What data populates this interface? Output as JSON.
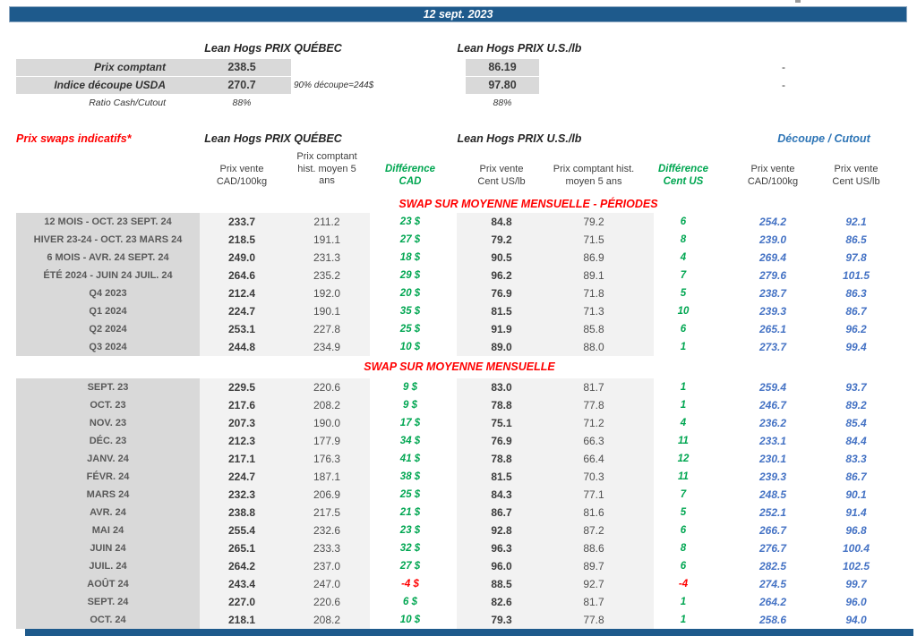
{
  "colors": {
    "navy": "#1E5A8C",
    "red": "#FF0000",
    "green": "#00A651",
    "blue": "#4472C4",
    "blue_title": "#2E75B6",
    "label_bg": "#D9D9D9",
    "band_bg": "#F2F2F2"
  },
  "page": {
    "date_bar": "12 sept. 2023"
  },
  "spot": {
    "qc_title": "Lean Hogs PRIX QUÉBEC",
    "us_title": "Lean Hogs PRIX U.S./lb",
    "rows": [
      {
        "label": "Prix comptant",
        "qc": "238.5",
        "us": "86.19",
        "dash": "-"
      },
      {
        "label": "Indice découpe USDA",
        "qc": "270.7",
        "us": "97.80",
        "note": "90% découpe=244$",
        "dash": "-"
      },
      {
        "label": "Ratio Cash/Cutout",
        "qc": "88%",
        "us": "88%"
      }
    ]
  },
  "swaps": {
    "title": "Prix swaps indicatifs*",
    "qc_title": "Lean Hogs PRIX QUÉBEC",
    "us_title": "Lean Hogs PRIX U.S./lb",
    "cutout_title": "Découpe / Cutout",
    "col_headers": [
      "Prix vente\nCAD/100kg",
      "Prix comptant\nhist. moyen 5\nans",
      "Différence\nCAD",
      "Prix vente\nCent US/lb",
      "Prix comptant hist.\nmoyen 5 ans",
      "Différence\nCent US",
      "Prix vente\nCAD/100kg",
      "Prix vente\nCent US/lb"
    ],
    "sections": [
      {
        "header": "SWAP SUR MOYENNE MENSUELLE - PÉRIODES",
        "rows": [
          [
            "12 MOIS - OCT. 23 SEPT. 24",
            "233.7",
            "211.2",
            "23 $",
            "84.8",
            "79.2",
            "6",
            "254.2",
            "92.1"
          ],
          [
            "HIVER 23-24 -  OCT. 23 MARS 24",
            "218.5",
            "191.1",
            "27 $",
            "79.2",
            "71.5",
            "8",
            "239.0",
            "86.5"
          ],
          [
            "6 MOIS -  AVR. 24 SEPT. 24",
            "249.0",
            "231.3",
            "18 $",
            "90.5",
            "86.9",
            "4",
            "269.4",
            "97.8"
          ],
          [
            "ÉTÉ 2024 - JUIN 24 JUIL. 24",
            "264.6",
            "235.2",
            "29 $",
            "96.2",
            "89.1",
            "7",
            "279.6",
            "101.5"
          ],
          [
            "Q4 2023",
            "212.4",
            "192.0",
            "20 $",
            "76.9",
            "71.8",
            "5",
            "238.7",
            "86.3"
          ],
          [
            "Q1 2024",
            "224.7",
            "190.1",
            "35 $",
            "81.5",
            "71.3",
            "10",
            "239.3",
            "86.7"
          ],
          [
            "Q2 2024",
            "253.1",
            "227.8",
            "25 $",
            "91.9",
            "85.8",
            "6",
            "265.1",
            "96.2"
          ],
          [
            "Q3 2024",
            "244.8",
            "234.9",
            "10 $",
            "89.0",
            "88.0",
            "1",
            "273.7",
            "99.4"
          ]
        ]
      },
      {
        "header": "SWAP SUR MOYENNE MENSUELLE",
        "rows": [
          [
            "SEPT. 23",
            "229.5",
            "220.6",
            "9 $",
            "83.0",
            "81.7",
            "1",
            "259.4",
            "93.7"
          ],
          [
            "OCT. 23",
            "217.6",
            "208.2",
            "9 $",
            "78.8",
            "77.8",
            "1",
            "246.7",
            "89.2"
          ],
          [
            "NOV. 23",
            "207.3",
            "190.0",
            "17 $",
            "75.1",
            "71.2",
            "4",
            "236.2",
            "85.4"
          ],
          [
            "DÉC. 23",
            "212.3",
            "177.9",
            "34 $",
            "76.9",
            "66.3",
            "11",
            "233.1",
            "84.4"
          ],
          [
            "JANV. 24",
            "217.1",
            "176.3",
            "41 $",
            "78.8",
            "66.4",
            "12",
            "230.1",
            "83.3"
          ],
          [
            "FÉVR. 24",
            "224.7",
            "187.1",
            "38 $",
            "81.5",
            "70.3",
            "11",
            "239.3",
            "86.7"
          ],
          [
            "MARS 24",
            "232.3",
            "206.9",
            "25 $",
            "84.3",
            "77.1",
            "7",
            "248.5",
            "90.1"
          ],
          [
            "AVR. 24",
            "238.8",
            "217.5",
            "21 $",
            "86.7",
            "81.6",
            "5",
            "252.1",
            "91.4"
          ],
          [
            "MAI 24",
            "255.4",
            "232.6",
            "23 $",
            "92.8",
            "87.2",
            "6",
            "266.7",
            "96.8"
          ],
          [
            "JUIN 24",
            "265.1",
            "233.3",
            "32 $",
            "96.3",
            "88.6",
            "8",
            "276.7",
            "100.4"
          ],
          [
            "JUIL. 24",
            "264.2",
            "237.0",
            "27 $",
            "96.0",
            "89.7",
            "6",
            "282.5",
            "102.5"
          ],
          [
            "AOÛT 24",
            "243.4",
            "247.0",
            "-4 $",
            "88.5",
            "92.7",
            "-4",
            "274.5",
            "99.7"
          ],
          [
            "SEPT. 24",
            "227.0",
            "220.6",
            "6 $",
            "82.6",
            "81.7",
            "1",
            "264.2",
            "96.0"
          ],
          [
            "OCT. 24",
            "218.1",
            "208.2",
            "10 $",
            "79.3",
            "77.8",
            "1",
            "258.6",
            "94.0"
          ]
        ]
      }
    ]
  }
}
